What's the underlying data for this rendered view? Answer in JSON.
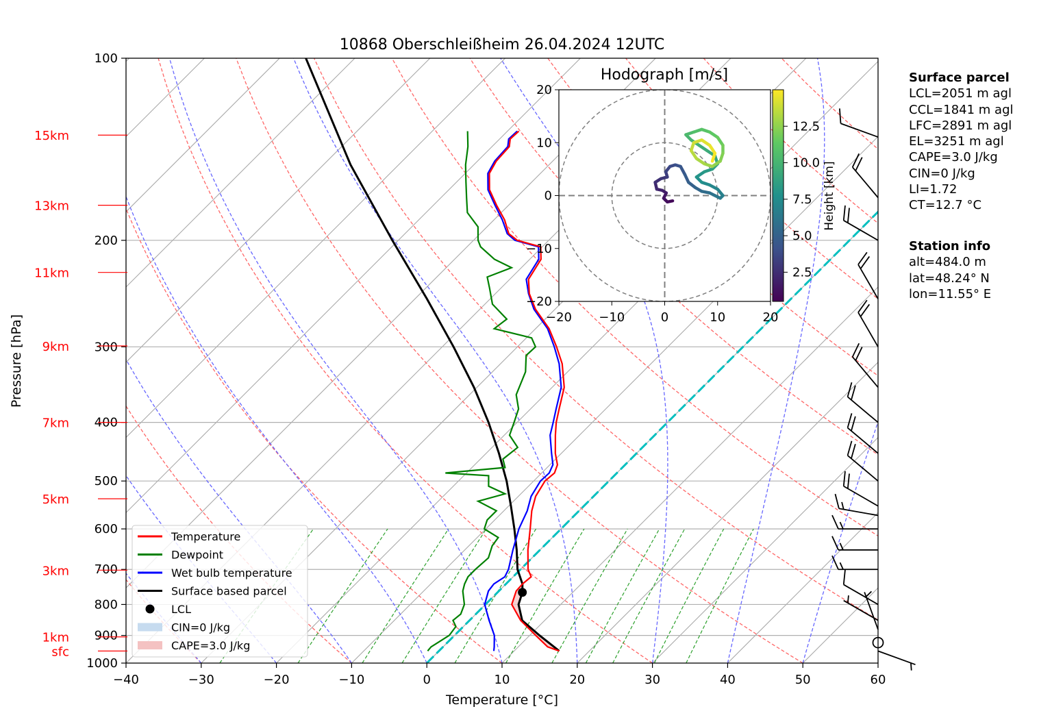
{
  "title": "10868 Oberschleißheim 26.04.2024 12UTC",
  "colors": {
    "temperature": "#ff0000",
    "dewpoint": "#008000",
    "wetbulb": "#0000ff",
    "parcel": "#000000",
    "dry_adiabat": "#ff6666",
    "moist_adiabat": "#6666ff",
    "mixing_ratio": "#2ca02c",
    "isotherm_zero": "#00bfbf",
    "cape_fill": "#f4c2c2",
    "cin_fill": "#c6dbef"
  },
  "chart_data": {
    "type": "line",
    "title": "10868 Oberschleißheim 26.04.2024 12UTC",
    "xlabel": "Temperature [°C]",
    "ylabel": "Pressure [hPa]",
    "xlim": [
      -40,
      60
    ],
    "ylim": [
      1000,
      100
    ],
    "y_scale": "log",
    "skew": "skew-T log-p",
    "grid": true,
    "x_ticks": [
      "−40",
      "−30",
      "−20",
      "−10",
      "0",
      "10",
      "20",
      "30",
      "40",
      "50",
      "60"
    ],
    "y_ticks": [
      "100",
      "200",
      "300",
      "400",
      "500",
      "600",
      "700",
      "800",
      "900",
      "1000"
    ],
    "height_labels": [
      {
        "label": "15km",
        "p": 134
      },
      {
        "label": "13km",
        "p": 175
      },
      {
        "label": "11km",
        "p": 226
      },
      {
        "label": "9km",
        "p": 299
      },
      {
        "label": "7km",
        "p": 400
      },
      {
        "label": "5km",
        "p": 535
      },
      {
        "label": "3km",
        "p": 702
      },
      {
        "label": "1km",
        "p": 905
      },
      {
        "label": "sfc",
        "p": 955
      }
    ],
    "series": [
      {
        "name": "Temperature",
        "points": [
          [
            955,
            16.0
          ],
          [
            940,
            13.9
          ],
          [
            900,
            10.8
          ],
          [
            850,
            6.8
          ],
          [
            800,
            3.5
          ],
          [
            760,
            2.3
          ],
          [
            740,
            2.2
          ],
          [
            720,
            2.4
          ],
          [
            700,
            1.0
          ],
          [
            650,
            -1.6
          ],
          [
            600,
            -4.1
          ],
          [
            560,
            -6.3
          ],
          [
            530,
            -7.7
          ],
          [
            500,
            -8.5
          ],
          [
            485,
            -8.3
          ],
          [
            470,
            -9.0
          ],
          [
            450,
            -10.8
          ],
          [
            420,
            -13.2
          ],
          [
            400,
            -14.8
          ],
          [
            380,
            -16.2
          ],
          [
            350,
            -18.4
          ],
          [
            320,
            -21.8
          ],
          [
            300,
            -24.8
          ],
          [
            280,
            -28.2
          ],
          [
            260,
            -32.6
          ],
          [
            245,
            -35.5
          ],
          [
            232,
            -37.5
          ],
          [
            215,
            -38.5
          ],
          [
            205,
            -40.2
          ],
          [
            200,
            -44.2
          ],
          [
            195,
            -46.2
          ],
          [
            185,
            -48.6
          ],
          [
            175,
            -51.6
          ],
          [
            165,
            -54.6
          ],
          [
            155,
            -56.8
          ],
          [
            148,
            -57.5
          ],
          [
            140,
            -57.7
          ],
          [
            136,
            -58.6
          ],
          [
            132,
            -58.5
          ]
        ]
      },
      {
        "name": "Dewpoint",
        "points": [
          [
            955,
            -1.5
          ],
          [
            940,
            -1.6
          ],
          [
            900,
            -0.7
          ],
          [
            870,
            -1.0
          ],
          [
            850,
            -2.2
          ],
          [
            830,
            -2.0
          ],
          [
            800,
            -2.8
          ],
          [
            760,
            -4.8
          ],
          [
            740,
            -5.5
          ],
          [
            720,
            -6.0
          ],
          [
            700,
            -6.0
          ],
          [
            670,
            -5.8
          ],
          [
            640,
            -6.9
          ],
          [
            620,
            -7.2
          ],
          [
            600,
            -10.2
          ],
          [
            580,
            -11.0
          ],
          [
            560,
            -11.0
          ],
          [
            540,
            -14.7
          ],
          [
            525,
            -12.1
          ],
          [
            510,
            -15.3
          ],
          [
            490,
            -16.7
          ],
          [
            485,
            -22.8
          ],
          [
            475,
            -15.6
          ],
          [
            460,
            -17.0
          ],
          [
            440,
            -16.6
          ],
          [
            420,
            -19.3
          ],
          [
            400,
            -20.4
          ],
          [
            380,
            -21.6
          ],
          [
            360,
            -23.8
          ],
          [
            330,
            -25.6
          ],
          [
            310,
            -27.7
          ],
          [
            300,
            -27.6
          ],
          [
            290,
            -29.3
          ],
          [
            280,
            -35.5
          ],
          [
            270,
            -35.1
          ],
          [
            255,
            -39.0
          ],
          [
            240,
            -41.5
          ],
          [
            230,
            -43.3
          ],
          [
            222,
            -41.3
          ],
          [
            215,
            -44.7
          ],
          [
            205,
            -48.2
          ],
          [
            200,
            -49.4
          ],
          [
            190,
            -51.2
          ],
          [
            180,
            -54.5
          ],
          [
            170,
            -56.6
          ],
          [
            160,
            -58.8
          ],
          [
            150,
            -61.1
          ],
          [
            140,
            -63.2
          ],
          [
            132,
            -65.3
          ]
        ]
      },
      {
        "name": "Wet bulb temperature",
        "points": [
          [
            955,
            7.3
          ],
          [
            940,
            6.8
          ],
          [
            900,
            5.3
          ],
          [
            850,
            2.6
          ],
          [
            800,
            -0.1
          ],
          [
            760,
            -1.4
          ],
          [
            740,
            -1.6
          ],
          [
            720,
            -1.1
          ],
          [
            700,
            -1.6
          ],
          [
            650,
            -3.6
          ],
          [
            600,
            -5.6
          ],
          [
            560,
            -6.9
          ],
          [
            530,
            -8.3
          ],
          [
            500,
            -9.1
          ],
          [
            485,
            -9.0
          ],
          [
            470,
            -9.6
          ],
          [
            450,
            -11.3
          ],
          [
            420,
            -13.9
          ],
          [
            400,
            -15.2
          ],
          [
            380,
            -16.6
          ],
          [
            350,
            -18.8
          ],
          [
            320,
            -22.2
          ],
          [
            300,
            -25.1
          ],
          [
            280,
            -28.4
          ],
          [
            260,
            -32.8
          ],
          [
            245,
            -35.6
          ],
          [
            232,
            -37.8
          ],
          [
            215,
            -38.8
          ],
          [
            205,
            -40.5
          ],
          [
            200,
            -44.5
          ],
          [
            195,
            -46.4
          ],
          [
            185,
            -48.9
          ],
          [
            175,
            -51.8
          ],
          [
            165,
            -54.8
          ],
          [
            155,
            -57.0
          ],
          [
            148,
            -57.7
          ],
          [
            140,
            -57.9
          ],
          [
            136,
            -58.8
          ],
          [
            132,
            -58.7
          ]
        ]
      },
      {
        "name": "Surface based parcel",
        "points": [
          [
            955,
            16.0
          ],
          [
            900,
            11.3
          ],
          [
            850,
            7.0
          ],
          [
            800,
            4.4
          ],
          [
            764,
            3.3
          ],
          [
            740,
            2.2
          ],
          [
            700,
            -0.4
          ],
          [
            650,
            -3.1
          ],
          [
            600,
            -6.2
          ],
          [
            550,
            -9.7
          ],
          [
            500,
            -13.6
          ],
          [
            450,
            -18.3
          ],
          [
            400,
            -23.8
          ],
          [
            350,
            -30.4
          ],
          [
            300,
            -38.5
          ],
          [
            250,
            -48.4
          ],
          [
            200,
            -60.8
          ],
          [
            150,
            -76.4
          ],
          [
            100,
            -96.5
          ]
        ]
      }
    ],
    "lcl": {
      "name": "LCL",
      "p": 764,
      "t": 3.3
    },
    "legend": [
      {
        "label": "Temperature",
        "kind": "line",
        "color": "#ff0000"
      },
      {
        "label": "Dewpoint",
        "kind": "line",
        "color": "#008000"
      },
      {
        "label": "Wet bulb temperature",
        "kind": "line",
        "color": "#0000ff"
      },
      {
        "label": "Surface based parcel",
        "kind": "line",
        "color": "#000000"
      },
      {
        "label": "LCL",
        "kind": "dot",
        "color": "#000000"
      },
      {
        "label": "CIN=0 J/kg",
        "kind": "patch",
        "color": "#c6dbef"
      },
      {
        "label": "CAPE=3.0 J/kg",
        "kind": "patch",
        "color": "#f4c2c2"
      }
    ],
    "legend_position": "lower-left",
    "wind_barbs": [
      {
        "p": 955,
        "speed_kt": 5,
        "dir": 110
      },
      {
        "p": 925,
        "speed_kt": 0,
        "dir": 0
      },
      {
        "p": 880,
        "speed_kt": 5,
        "dir": 340
      },
      {
        "p": 850,
        "speed_kt": 5,
        "dir": 300
      },
      {
        "p": 800,
        "speed_kt": 10,
        "dir": 300
      },
      {
        "p": 700,
        "speed_kt": 15,
        "dir": 270
      },
      {
        "p": 650,
        "speed_kt": 15,
        "dir": 270
      },
      {
        "p": 600,
        "speed_kt": 15,
        "dir": 270
      },
      {
        "p": 570,
        "speed_kt": 15,
        "dir": 280
      },
      {
        "p": 550,
        "speed_kt": 20,
        "dir": 300
      },
      {
        "p": 500,
        "speed_kt": 20,
        "dir": 310
      },
      {
        "p": 450,
        "speed_kt": 20,
        "dir": 310
      },
      {
        "p": 400,
        "speed_kt": 20,
        "dir": 310
      },
      {
        "p": 350,
        "speed_kt": 20,
        "dir": 320
      },
      {
        "p": 300,
        "speed_kt": 20,
        "dir": 330
      },
      {
        "p": 250,
        "speed_kt": 20,
        "dir": 330
      },
      {
        "p": 200,
        "speed_kt": 20,
        "dir": 300
      },
      {
        "p": 170,
        "speed_kt": 20,
        "dir": 320
      },
      {
        "p": 135,
        "speed_kt": 10,
        "dir": 290
      }
    ],
    "hodograph": {
      "title": "Hodograph [m/s]",
      "xlim": [
        -20,
        20
      ],
      "ylim": [
        -20,
        20
      ],
      "x_ticks": [
        "−20",
        "−10",
        "0",
        "10",
        "20"
      ],
      "y_ticks": [
        "20",
        "10",
        "0",
        "−10",
        "−20"
      ],
      "rings": [
        10,
        20
      ],
      "colorbar_label": "Height [km]",
      "colorbar_ticks": [
        "2.5",
        "5.0",
        "7.5",
        "10.0",
        "12.5"
      ],
      "colorbar_range": [
        0.5,
        15
      ],
      "trace": [
        [
          1.5,
          -1.0,
          0.5
        ],
        [
          0.5,
          -1.2,
          0.8
        ],
        [
          -0.2,
          -0.5,
          1.1
        ],
        [
          0.3,
          0.5,
          1.4
        ],
        [
          -0.5,
          1.0,
          1.7
        ],
        [
          -1.5,
          1.2,
          2.0
        ],
        [
          -1.8,
          2.5,
          2.3
        ],
        [
          -0.7,
          3.2,
          2.6
        ],
        [
          0.5,
          3.5,
          2.9
        ],
        [
          0.2,
          4.5,
          3.2
        ],
        [
          1.0,
          5.5,
          3.5
        ],
        [
          2.0,
          5.8,
          3.8
        ],
        [
          3.0,
          5.5,
          4.1
        ],
        [
          3.8,
          4.0,
          4.4
        ],
        [
          4.5,
          2.5,
          4.7
        ],
        [
          5.8,
          1.5,
          5.0
        ],
        [
          7.0,
          0.8,
          5.3
        ],
        [
          8.5,
          0.5,
          5.6
        ],
        [
          9.5,
          0.0,
          5.9
        ],
        [
          10.5,
          -0.5,
          6.2
        ],
        [
          11.0,
          0.0,
          6.5
        ],
        [
          10.0,
          1.2,
          6.8
        ],
        [
          8.5,
          2.0,
          7.1
        ],
        [
          7.0,
          2.5,
          7.4
        ],
        [
          6.0,
          3.5,
          7.7
        ],
        [
          7.5,
          4.5,
          8.0
        ],
        [
          9.0,
          5.0,
          8.3
        ],
        [
          10.0,
          6.0,
          8.6
        ],
        [
          9.5,
          7.5,
          8.9
        ],
        [
          8.0,
          8.5,
          9.2
        ],
        [
          6.5,
          9.5,
          9.5
        ],
        [
          5.0,
          10.5,
          9.8
        ],
        [
          4.0,
          11.5,
          10.1
        ],
        [
          5.5,
          12.0,
          10.4
        ],
        [
          7.0,
          12.5,
          10.7
        ],
        [
          8.5,
          12.0,
          11.0
        ],
        [
          10.0,
          11.0,
          11.3
        ],
        [
          11.0,
          9.5,
          11.6
        ],
        [
          11.0,
          8.0,
          11.9
        ],
        [
          10.5,
          6.5,
          12.2
        ],
        [
          9.0,
          5.5,
          12.5
        ],
        [
          7.5,
          6.0,
          12.8
        ],
        [
          6.0,
          7.0,
          13.1
        ],
        [
          5.0,
          8.5,
          13.4
        ],
        [
          5.5,
          10.0,
          13.7
        ],
        [
          7.0,
          10.5,
          14.0
        ],
        [
          8.5,
          9.5,
          14.3
        ],
        [
          9.5,
          8.0,
          14.6
        ],
        [
          9.0,
          6.5,
          14.9
        ]
      ]
    },
    "axis_lines": {
      "isotherm_zero_color": "#00bfbf"
    }
  },
  "surface_parcel": {
    "heading": "Surface parcel",
    "lines": [
      "LCL=2051 m agl",
      "CCL=1841 m agl",
      "LFC=2891 m agl",
      "EL=3251 m agl",
      "CAPE=3.0 J/kg",
      "CIN=0 J/kg",
      "LI=1.72",
      "CT=12.7 °C"
    ]
  },
  "station_info": {
    "heading": "Station info",
    "lines": [
      "alt=484.0 m",
      "lat=48.24° N",
      "lon=11.55° E"
    ]
  }
}
